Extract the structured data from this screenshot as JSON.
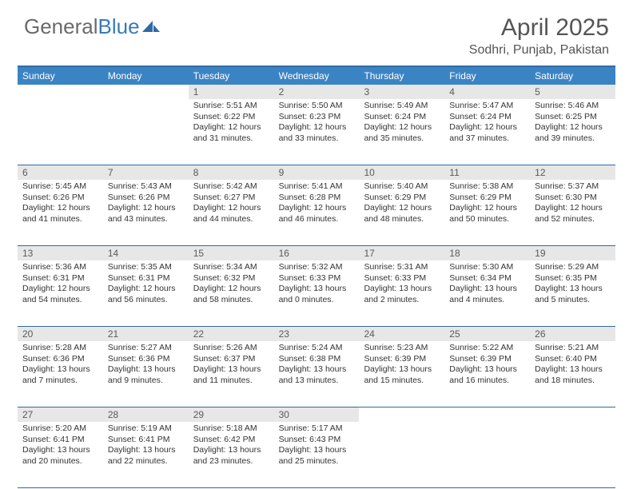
{
  "logo": {
    "text1": "General",
    "text2": "Blue"
  },
  "title": "April 2025",
  "location": "Sodhri, Punjab, Pakistan",
  "header_color": "#3b84c4",
  "border_color": "#2f6aa5",
  "daynum_bg": "#e7e7e7",
  "weekdays": [
    "Sunday",
    "Monday",
    "Tuesday",
    "Wednesday",
    "Thursday",
    "Friday",
    "Saturday"
  ],
  "weeks": [
    [
      null,
      null,
      {
        "d": "1",
        "sr": "5:51 AM",
        "ss": "6:22 PM",
        "dl": "12 hours and 31 minutes."
      },
      {
        "d": "2",
        "sr": "5:50 AM",
        "ss": "6:23 PM",
        "dl": "12 hours and 33 minutes."
      },
      {
        "d": "3",
        "sr": "5:49 AM",
        "ss": "6:24 PM",
        "dl": "12 hours and 35 minutes."
      },
      {
        "d": "4",
        "sr": "5:47 AM",
        "ss": "6:24 PM",
        "dl": "12 hours and 37 minutes."
      },
      {
        "d": "5",
        "sr": "5:46 AM",
        "ss": "6:25 PM",
        "dl": "12 hours and 39 minutes."
      }
    ],
    [
      {
        "d": "6",
        "sr": "5:45 AM",
        "ss": "6:26 PM",
        "dl": "12 hours and 41 minutes."
      },
      {
        "d": "7",
        "sr": "5:43 AM",
        "ss": "6:26 PM",
        "dl": "12 hours and 43 minutes."
      },
      {
        "d": "8",
        "sr": "5:42 AM",
        "ss": "6:27 PM",
        "dl": "12 hours and 44 minutes."
      },
      {
        "d": "9",
        "sr": "5:41 AM",
        "ss": "6:28 PM",
        "dl": "12 hours and 46 minutes."
      },
      {
        "d": "10",
        "sr": "5:40 AM",
        "ss": "6:29 PM",
        "dl": "12 hours and 48 minutes."
      },
      {
        "d": "11",
        "sr": "5:38 AM",
        "ss": "6:29 PM",
        "dl": "12 hours and 50 minutes."
      },
      {
        "d": "12",
        "sr": "5:37 AM",
        "ss": "6:30 PM",
        "dl": "12 hours and 52 minutes."
      }
    ],
    [
      {
        "d": "13",
        "sr": "5:36 AM",
        "ss": "6:31 PM",
        "dl": "12 hours and 54 minutes."
      },
      {
        "d": "14",
        "sr": "5:35 AM",
        "ss": "6:31 PM",
        "dl": "12 hours and 56 minutes."
      },
      {
        "d": "15",
        "sr": "5:34 AM",
        "ss": "6:32 PM",
        "dl": "12 hours and 58 minutes."
      },
      {
        "d": "16",
        "sr": "5:32 AM",
        "ss": "6:33 PM",
        "dl": "13 hours and 0 minutes."
      },
      {
        "d": "17",
        "sr": "5:31 AM",
        "ss": "6:33 PM",
        "dl": "13 hours and 2 minutes."
      },
      {
        "d": "18",
        "sr": "5:30 AM",
        "ss": "6:34 PM",
        "dl": "13 hours and 4 minutes."
      },
      {
        "d": "19",
        "sr": "5:29 AM",
        "ss": "6:35 PM",
        "dl": "13 hours and 5 minutes."
      }
    ],
    [
      {
        "d": "20",
        "sr": "5:28 AM",
        "ss": "6:36 PM",
        "dl": "13 hours and 7 minutes."
      },
      {
        "d": "21",
        "sr": "5:27 AM",
        "ss": "6:36 PM",
        "dl": "13 hours and 9 minutes."
      },
      {
        "d": "22",
        "sr": "5:26 AM",
        "ss": "6:37 PM",
        "dl": "13 hours and 11 minutes."
      },
      {
        "d": "23",
        "sr": "5:24 AM",
        "ss": "6:38 PM",
        "dl": "13 hours and 13 minutes."
      },
      {
        "d": "24",
        "sr": "5:23 AM",
        "ss": "6:39 PM",
        "dl": "13 hours and 15 minutes."
      },
      {
        "d": "25",
        "sr": "5:22 AM",
        "ss": "6:39 PM",
        "dl": "13 hours and 16 minutes."
      },
      {
        "d": "26",
        "sr": "5:21 AM",
        "ss": "6:40 PM",
        "dl": "13 hours and 18 minutes."
      }
    ],
    [
      {
        "d": "27",
        "sr": "5:20 AM",
        "ss": "6:41 PM",
        "dl": "13 hours and 20 minutes."
      },
      {
        "d": "28",
        "sr": "5:19 AM",
        "ss": "6:41 PM",
        "dl": "13 hours and 22 minutes."
      },
      {
        "d": "29",
        "sr": "5:18 AM",
        "ss": "6:42 PM",
        "dl": "13 hours and 23 minutes."
      },
      {
        "d": "30",
        "sr": "5:17 AM",
        "ss": "6:43 PM",
        "dl": "13 hours and 25 minutes."
      },
      null,
      null,
      null
    ]
  ],
  "labels": {
    "sunrise": "Sunrise: ",
    "sunset": "Sunset: ",
    "daylight": "Daylight: "
  }
}
